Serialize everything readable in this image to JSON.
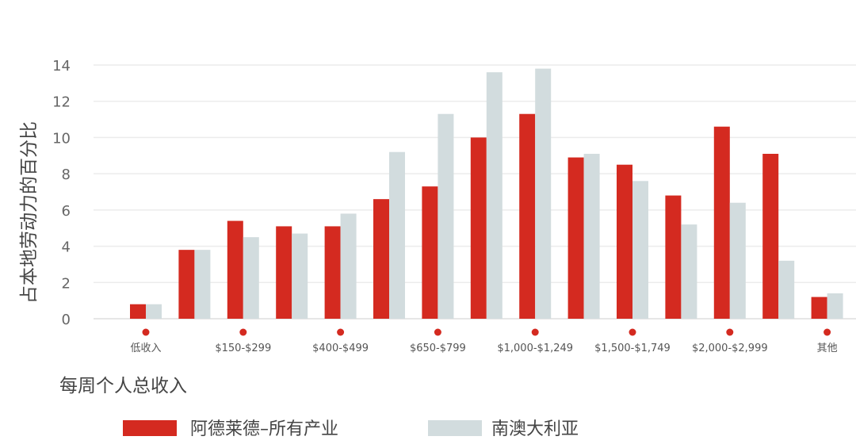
{
  "chart_data": {
    "type": "bar",
    "ylabel": "占本地劳动力的百分比",
    "xlabel": "每周个人总收入",
    "ylim": [
      0,
      14
    ],
    "yticks": [
      0,
      2,
      4,
      6,
      8,
      10,
      12,
      14
    ],
    "grid": true,
    "legend_position": "bottom",
    "categories": [
      "低收入",
      "",
      "$150-$299",
      "",
      "$400-$499",
      "",
      "$650-$799",
      "",
      "$1,000-$1,249",
      "",
      "$1,500-$1,749",
      "",
      "$2,000-$2,999",
      "",
      "其他"
    ],
    "series": [
      {
        "name": "阿德莱德–所有产业",
        "color": "#d42a20",
        "values": [
          0.8,
          3.8,
          5.4,
          5.1,
          5.1,
          6.6,
          7.3,
          10.0,
          11.3,
          8.9,
          8.5,
          6.8,
          10.6,
          9.1,
          1.2
        ]
      },
      {
        "name": "南澳大利亚",
        "color": "#d2dcde",
        "values": [
          0.8,
          3.8,
          4.5,
          4.7,
          5.8,
          9.2,
          11.3,
          13.6,
          13.8,
          9.1,
          7.6,
          5.2,
          6.4,
          3.2,
          1.4
        ]
      }
    ]
  }
}
